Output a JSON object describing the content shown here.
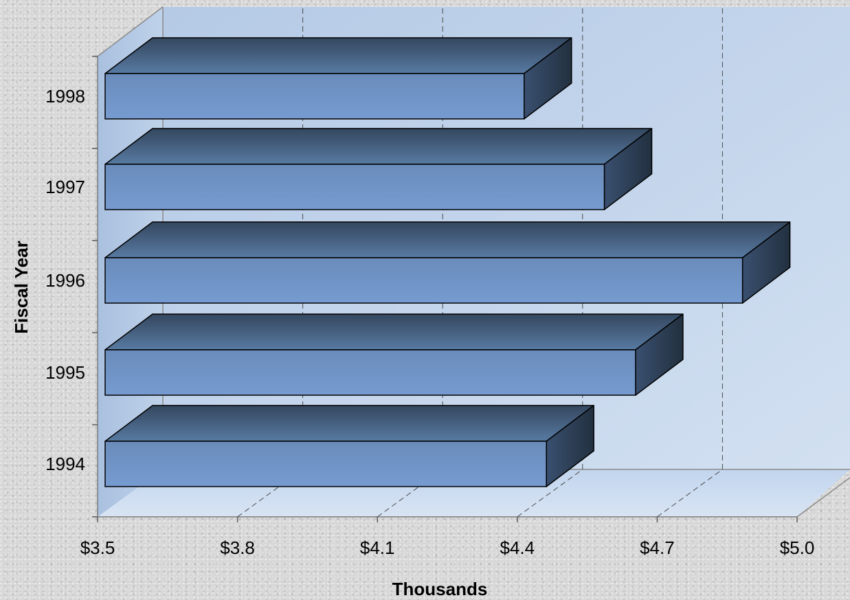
{
  "chart_data": {
    "type": "bar",
    "orientation": "horizontal",
    "style": "3d",
    "categories": [
      "1994",
      "1995",
      "1996",
      "1997",
      "1998"
    ],
    "values": [
      4.49,
      4.69,
      4.93,
      4.62,
      4.44
    ],
    "xlim": [
      3.5,
      5.0
    ],
    "x_ticks": [
      "$3.5",
      "$3.8",
      "$4.1",
      "$4.4",
      "$4.7",
      "$5.0"
    ],
    "xlabel": "Thousands",
    "ylabel": "Fiscal Year",
    "grid": "vertical dashed",
    "legend": "none",
    "colors": {
      "bar_front": "#6f93c4",
      "bar_top": "#3f5877",
      "bar_side": "#2d3e55",
      "wall": "#b8cde8",
      "floor": "#c4d6ee"
    }
  }
}
